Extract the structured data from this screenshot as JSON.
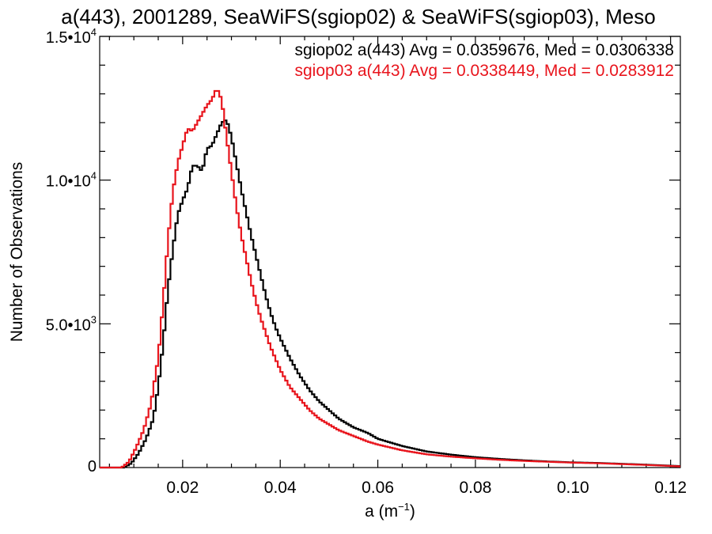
{
  "chart_data": {
    "type": "line",
    "title": "a(443), 2001289, SeaWiFS(sgiop02) & SeaWiFS(sgiop03), Meso",
    "xlabel": "a (m⁻¹)",
    "ylabel": "Number of Observations",
    "xlim": [
      0.003,
      0.122
    ],
    "ylim": [
      0,
      15000
    ],
    "x_ticks": [
      {
        "value": 0.02,
        "label": "0.02"
      },
      {
        "value": 0.04,
        "label": "0.04"
      },
      {
        "value": 0.06,
        "label": "0.06"
      },
      {
        "value": 0.08,
        "label": "0.08"
      },
      {
        "value": 0.1,
        "label": "0.10"
      },
      {
        "value": 0.12,
        "label": "0.12"
      }
    ],
    "y_ticks": [
      {
        "value": 0,
        "mantissa": "0",
        "exponent": ""
      },
      {
        "value": 5000,
        "mantissa": "5.0•10",
        "exponent": "3"
      },
      {
        "value": 10000,
        "mantissa": "1.0•10",
        "exponent": "4"
      },
      {
        "value": 15000,
        "mantissa": "1.5•10",
        "exponent": "4"
      }
    ],
    "grid": false,
    "legend_position": "top-right",
    "series": [
      {
        "name": "sgiop02 a(443) Avg = 0.0359676, Med = 0.0306338",
        "color": "#000000",
        "x": [
          0.003,
          0.008,
          0.0095,
          0.011,
          0.0125,
          0.014,
          0.015,
          0.016,
          0.017,
          0.018,
          0.019,
          0.02,
          0.021,
          0.022,
          0.023,
          0.024,
          0.025,
          0.026,
          0.027,
          0.028,
          0.029,
          0.03,
          0.031,
          0.032,
          0.033,
          0.034,
          0.035,
          0.036,
          0.037,
          0.038,
          0.039,
          0.04,
          0.042,
          0.044,
          0.046,
          0.048,
          0.05,
          0.052,
          0.055,
          0.058,
          0.06,
          0.065,
          0.07,
          0.075,
          0.08,
          0.085,
          0.09,
          0.095,
          0.1,
          0.105,
          0.11,
          0.115,
          0.122
        ],
        "y": [
          0,
          0,
          150,
          500,
          1000,
          1700,
          2800,
          4300,
          6200,
          7600,
          8800,
          9300,
          9700,
          10500,
          10500,
          10300,
          11100,
          11200,
          11600,
          12000,
          12100,
          11500,
          10600,
          9700,
          8900,
          8100,
          7400,
          6700,
          6000,
          5400,
          4900,
          4500,
          3800,
          3200,
          2700,
          2300,
          2000,
          1700,
          1400,
          1200,
          1000,
          750,
          560,
          450,
          360,
          300,
          250,
          210,
          180,
          160,
          130,
          100,
          50
        ]
      },
      {
        "name": "sgiop03 a(443) Avg = 0.0338449, Med = 0.0283912",
        "color": "#e8141c",
        "x": [
          0.003,
          0.0075,
          0.009,
          0.0105,
          0.012,
          0.0135,
          0.015,
          0.016,
          0.017,
          0.018,
          0.019,
          0.02,
          0.021,
          0.022,
          0.023,
          0.024,
          0.025,
          0.026,
          0.027,
          0.028,
          0.029,
          0.03,
          0.031,
          0.032,
          0.033,
          0.034,
          0.035,
          0.036,
          0.037,
          0.038,
          0.039,
          0.04,
          0.042,
          0.044,
          0.046,
          0.048,
          0.05,
          0.052,
          0.055,
          0.058,
          0.06,
          0.065,
          0.07,
          0.075,
          0.08,
          0.085,
          0.09,
          0.095,
          0.1,
          0.105,
          0.11,
          0.115,
          0.122
        ],
        "y": [
          0,
          0,
          200,
          700,
          1300,
          2200,
          3800,
          5700,
          7900,
          9600,
          10600,
          11200,
          11800,
          11700,
          12000,
          12300,
          12600,
          12800,
          13200,
          12800,
          11500,
          10300,
          9100,
          8100,
          7300,
          6500,
          5800,
          5200,
          4700,
          4200,
          3800,
          3400,
          2800,
          2400,
          2000,
          1700,
          1500,
          1300,
          1100,
          900,
          800,
          600,
          460,
          380,
          320,
          270,
          230,
          200,
          170,
          150,
          120,
          90,
          40
        ]
      }
    ]
  }
}
